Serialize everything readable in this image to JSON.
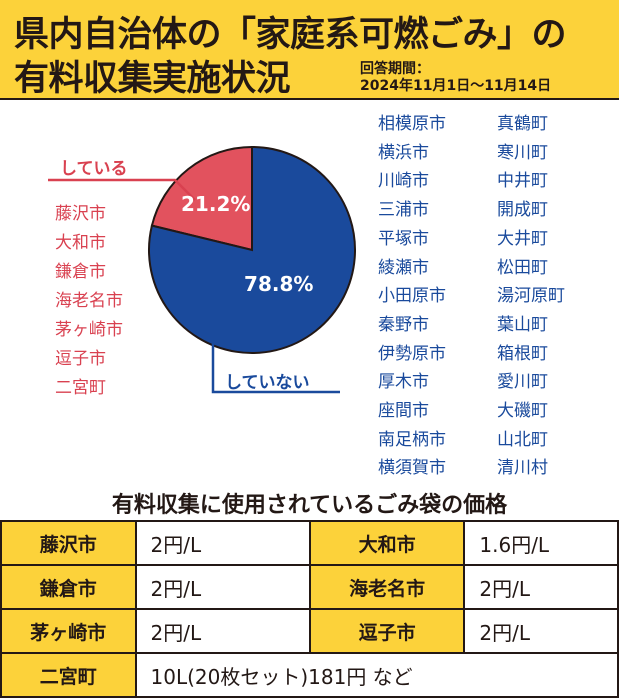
{
  "header": {
    "title_line1": "県内自治体の「家庭系可燃ごみ」の",
    "title_line2": "有料収集実施状況",
    "period_label": "回答期間：",
    "period_range": "2024年11月1日〜11月14日"
  },
  "colors": {
    "header_bg": "#fcd23a",
    "yes": "#d94150",
    "no": "#1a4a9c"
  },
  "chart_data": {
    "type": "pie",
    "slices": [
      {
        "name": "している",
        "value": 21.2,
        "label": "21.2%",
        "color": "#e2525e"
      },
      {
        "name": "していない",
        "value": 78.8,
        "label": "78.8%",
        "color": "#1a4a9c"
      }
    ]
  },
  "yes_municipalities": [
    "藤沢市",
    "大和市",
    "鎌倉市",
    "海老名市",
    "茅ヶ崎市",
    "逗子市",
    "二宮町"
  ],
  "no_municipalities_col1": [
    "相模原市",
    "横浜市",
    "川崎市",
    "三浦市",
    "平塚市",
    "綾瀬市",
    "小田原市",
    "秦野市",
    "伊勢原市",
    "厚木市",
    "座間市",
    "南足柄市",
    "横須賀市"
  ],
  "no_municipalities_col2": [
    "真鶴町",
    "寒川町",
    "中井町",
    "開成町",
    "大井町",
    "松田町",
    "湯河原町",
    "葉山町",
    "箱根町",
    "愛川町",
    "大磯町",
    "山北町",
    "清川村"
  ],
  "price_section": {
    "title": "有料収集に使用されているごみ袋の価格",
    "rows": [
      {
        "city_a": "藤沢市",
        "price_a": "2円/L",
        "city_b": "大和市",
        "price_b": "1.6円/L"
      },
      {
        "city_a": "鎌倉市",
        "price_a": "2円/L",
        "city_b": "海老名市",
        "price_b": "2円/L"
      },
      {
        "city_a": "茅ヶ崎市",
        "price_a": "2円/L",
        "city_b": "逗子市",
        "price_b": "2円/L"
      }
    ],
    "last_row": {
      "city": "二宮町",
      "price": "10L(20枚セット)181円 など"
    }
  }
}
